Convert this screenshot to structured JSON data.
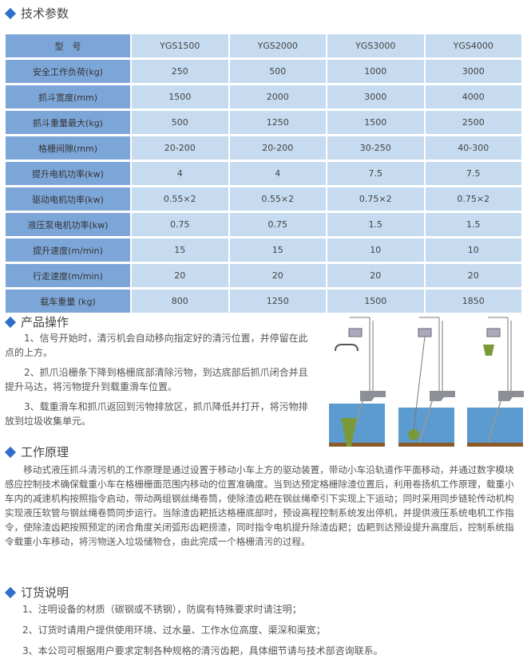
{
  "sections": {
    "specs": "技术参数",
    "operation": "产品操作",
    "principle": "工作原理",
    "order": "订货说明"
  },
  "table": {
    "header": [
      "型　号",
      "YGS1500",
      "YGS2000",
      "YGS3000",
      "YGS4000"
    ],
    "rows": [
      [
        "安全工作负荷(kg)",
        "250",
        "500",
        "1000",
        "3000"
      ],
      [
        "抓斗宽度(mm)",
        "1500",
        "2000",
        "3000",
        "4000"
      ],
      [
        "抓斗重量最大(kg)",
        "500",
        "1250",
        "1500",
        "2500"
      ],
      [
        "格栅间隙(mm)",
        "20-200",
        "20-200",
        "30-250",
        "40-300"
      ],
      [
        "提升电机功率(kw)",
        "4",
        "4",
        "7.5",
        "7.5"
      ],
      [
        "驱动电机功率(kw)",
        "0.55×2",
        "0.55×2",
        "0.75×2",
        "0.75×2"
      ],
      [
        "液压泵电机功率(kw)",
        "0.75",
        "0.75",
        "1.5",
        "1.5"
      ],
      [
        "提升速度(m/min)",
        "15",
        "15",
        "10",
        "10"
      ],
      [
        "行走速度(m/min)",
        "20",
        "20",
        "20",
        "20"
      ],
      [
        "载车重量 (kg)",
        "800",
        "1250",
        "1500",
        "1850"
      ]
    ]
  },
  "operation": [
    "1、信号开始时，清污机会自动移向指定好的清污位置，并停留在此点的上方。",
    "2、抓爪沿栅条下降到格栅底部清除污物，到达底部后抓爪闭合并且提升马达，将污物提升到载重滑车位置。",
    "3、载重滑车和抓爪返回到污物排放区，抓爪降低并打开，将污物排放到垃圾收集单元。"
  ],
  "principle": "移动式液压抓斗清污机的工作原理是通过设置于移动小车上方的驱动装置，带动小车沿轨道作平面移动，并通过数字模块感应控制技术确保载重小车在格栅栅面范围内移动的位置准确度。当到达预定格栅除渣位置后，利用卷扬机工作原理，载重小车内的减速机构按照指令启动，带动两组钢丝绳卷筒，使除渣齿耙在钢丝绳牵引下实现上下运动；同时采用同步链轮传动机构实现液压软管与钢丝绳卷筒同步运行。当除渣齿耙抵达格栅底部时，预设高程控制系统发出停机，并提供液压系统电机工作指令，使除渣齿耙按照预定的闭合角度关闭弧形齿耙捞渣，同时指令电机提升除渣齿耙；齿耙到达预设提升高度后，控制系统指令载重小车移动，将污物送入垃圾储物仓，由此完成一个格栅清污的过程。",
  "order": [
    "1、注明设备的材质（碳钢或不锈钢），防腐有特殊要求时请注明；",
    "2、订货时请用户提供使用环境、过水量、工作水位高度、渠深和渠宽；",
    "3、本公司可根据用户要求定制各种规格的清污齿耙，具体细节请与技术部咨询联系。"
  ],
  "colors": {
    "accent": "#2f6fc9",
    "label_cell": "#7da6d8",
    "data_cell": "#c6dbf0",
    "water": "#5b9bd0",
    "ground": "#8a5a2b",
    "debris": "#7a9a3a"
  }
}
